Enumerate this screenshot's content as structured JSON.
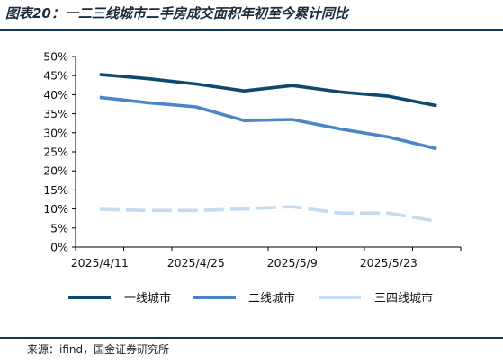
{
  "header": {
    "title": "图表20：一二三线城市二手房成交面积年初至今累计同比"
  },
  "footer": {
    "source": "来源：ifind，国金证券研究所"
  },
  "colors": {
    "tier1": "#0d4a6e",
    "tier2": "#4a86c6",
    "tier34": "#c6daf0",
    "axis": "#000000",
    "rule": "#0f3a5c"
  },
  "chart_data": {
    "type": "line",
    "title": "",
    "xlabel": "",
    "ylabel": "",
    "x_tick_labels": [
      "2025/4/11",
      "2025/4/25",
      "2025/5/9",
      "2025/5/23"
    ],
    "x": [
      "2025/4/11",
      "2025/4/18",
      "2025/4/25",
      "2025/5/2",
      "2025/5/9",
      "2025/5/16",
      "2025/5/23",
      "2025/5/30"
    ],
    "y_tick_labels": [
      "0%",
      "5%",
      "10%",
      "15%",
      "20%",
      "25%",
      "30%",
      "35%",
      "40%",
      "45%",
      "50%"
    ],
    "ylim": [
      0,
      50
    ],
    "y_unit": "%",
    "grid": false,
    "legend_position": "bottom",
    "series": [
      {
        "name": "一线城市",
        "color": "#0d4a6e",
        "style": "solid",
        "values": [
          45.3,
          44.2,
          42.8,
          41.0,
          42.4,
          40.7,
          39.6,
          37.1
        ]
      },
      {
        "name": "二线城市",
        "color": "#4a86c6",
        "style": "solid",
        "values": [
          39.3,
          37.9,
          36.8,
          33.2,
          33.5,
          31.0,
          28.9,
          25.8
        ]
      },
      {
        "name": "三四线城市",
        "color": "#c6daf0",
        "style": "dashed",
        "values": [
          9.9,
          9.6,
          9.6,
          10.0,
          10.6,
          8.9,
          8.9,
          6.8
        ]
      }
    ]
  }
}
